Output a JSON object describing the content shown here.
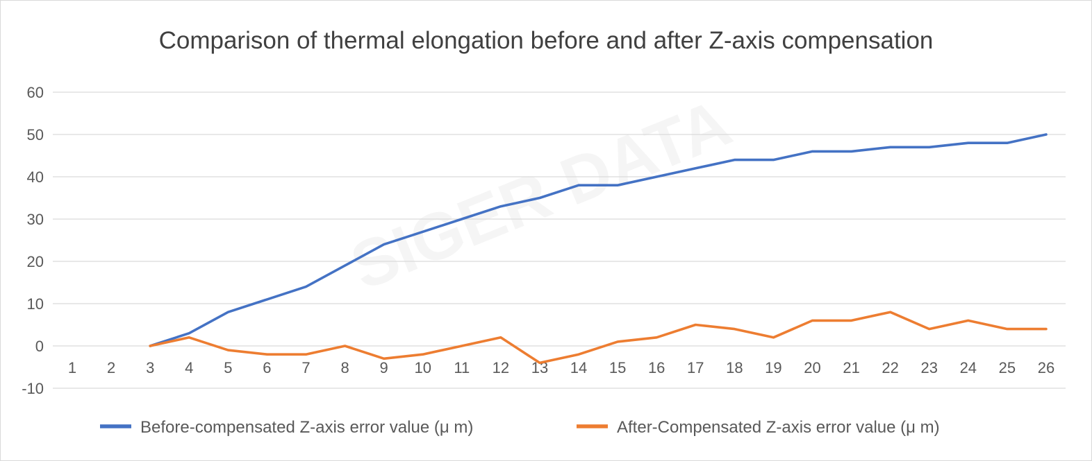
{
  "chart_data": {
    "type": "line",
    "title": "Comparison of thermal elongation before and after Z-axis compensation",
    "xlabel": "",
    "ylabel": "",
    "categories": [
      "1",
      "2",
      "3",
      "4",
      "5",
      "6",
      "7",
      "8",
      "9",
      "10",
      "11",
      "12",
      "13",
      "14",
      "15",
      "16",
      "17",
      "18",
      "19",
      "20",
      "21",
      "22",
      "23",
      "24",
      "25",
      "26"
    ],
    "ylim": [
      -10,
      60
    ],
    "yticks": [
      -10,
      0,
      10,
      20,
      30,
      40,
      50,
      60
    ],
    "grid": true,
    "legend_position": "bottom",
    "series": [
      {
        "name": "Before-compensated Z-axis error value (μ m)",
        "color": "#4472C4",
        "values": [
          null,
          null,
          0,
          3,
          8,
          11,
          14,
          19,
          24,
          27,
          30,
          33,
          35,
          38,
          38,
          40,
          42,
          44,
          44,
          46,
          46,
          47,
          47,
          48,
          48,
          50
        ]
      },
      {
        "name": "After-Compensated Z-axis error value (μ m)",
        "color": "#ED7D31",
        "values": [
          null,
          null,
          0,
          2,
          -1,
          -2,
          -2,
          0,
          -3,
          -2,
          0,
          2,
          -4,
          -2,
          1,
          2,
          5,
          4,
          2,
          6,
          6,
          8,
          4,
          6,
          4,
          4
        ]
      }
    ],
    "watermark": "SIGER DATA"
  }
}
